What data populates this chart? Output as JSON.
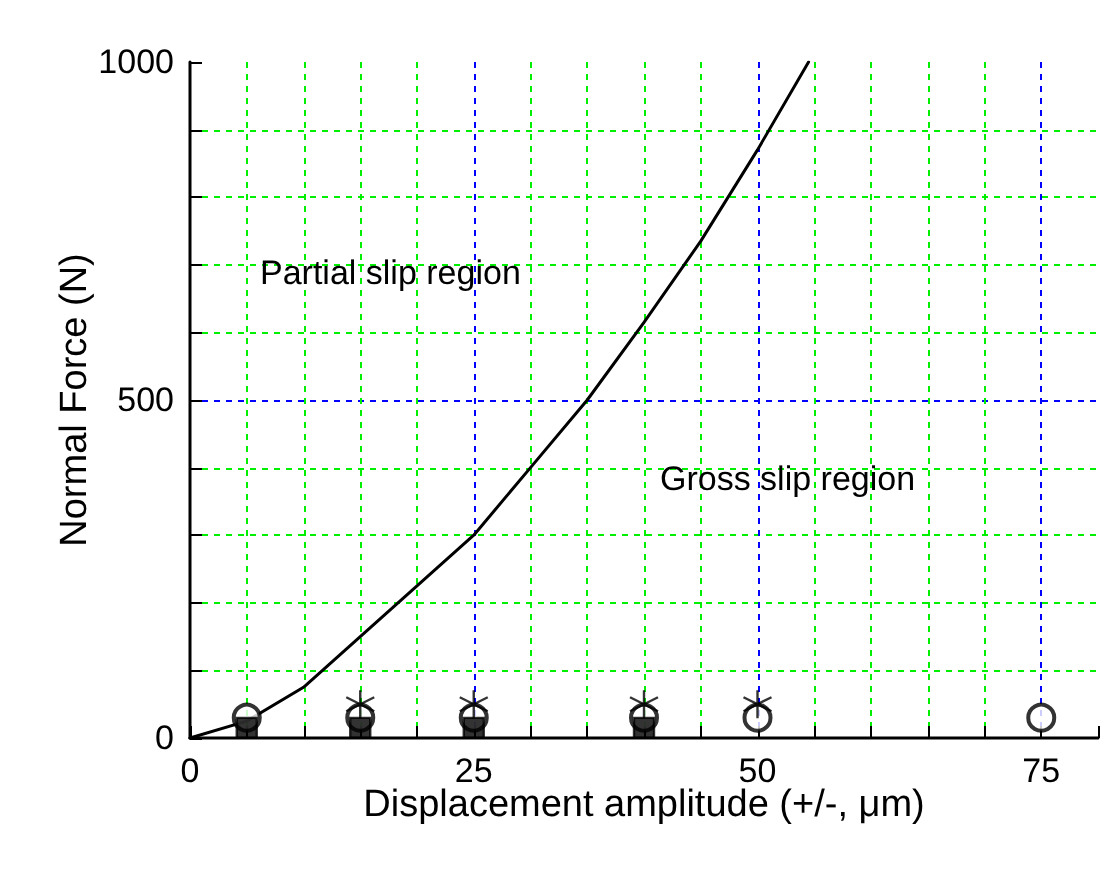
{
  "chart_data": {
    "type": "line",
    "xlabel": "Displacement amplitude (+/-, μm)",
    "ylabel": "Normal Force (N)",
    "xlim": [
      0,
      80
    ],
    "ylim": [
      0,
      1000
    ],
    "xticks": [
      0,
      {
        "value": 5,
        "label": null
      },
      {
        "value": 10,
        "label": null
      },
      {
        "value": 15,
        "label": null
      },
      {
        "value": 20,
        "label": null
      },
      25,
      {
        "value": 30,
        "label": null
      },
      {
        "value": 35,
        "label": null
      },
      {
        "value": 40,
        "label": null
      },
      {
        "value": 45,
        "label": null
      },
      50,
      {
        "value": 55,
        "label": null
      },
      {
        "value": 60,
        "label": null
      },
      {
        "value": 65,
        "label": null
      },
      {
        "value": 70,
        "label": null
      },
      75,
      {
        "value": 80,
        "label": null
      }
    ],
    "yticks": [
      0,
      {
        "value": 100,
        "label": null
      },
      {
        "value": 200,
        "label": null
      },
      {
        "value": 300,
        "label": null
      },
      {
        "value": 400,
        "label": null
      },
      500,
      {
        "value": 600,
        "label": null
      },
      {
        "value": 700,
        "label": null
      },
      {
        "value": 800,
        "label": null
      },
      {
        "value": 900,
        "label": null
      },
      1000
    ],
    "grid": true,
    "series": [
      {
        "type": "line",
        "color": "#000000",
        "marker": "none",
        "x": [
          0,
          5,
          10,
          15,
          20,
          25,
          30,
          35,
          40,
          45,
          50,
          54.5
        ],
        "values": [
          0,
          25,
          75,
          150,
          225,
          300,
          400,
          500,
          615,
          735,
          870,
          1000
        ]
      },
      {
        "type": "scatter",
        "color": "#000000",
        "marker": "square",
        "x": [
          5,
          15,
          25,
          40
        ],
        "values": [
          15,
          15,
          15,
          15
        ]
      },
      {
        "type": "scatter",
        "color": "#000000",
        "marker": "circle",
        "x": [
          5,
          15,
          25,
          40,
          50,
          75
        ],
        "values": [
          30,
          30,
          30,
          30,
          30,
          30
        ]
      },
      {
        "type": "scatter",
        "color": "#000000",
        "marker": "cross",
        "x": [
          15,
          25,
          40,
          50
        ],
        "values": [
          50,
          50,
          50,
          50
        ]
      }
    ],
    "annotations": [
      "Partial slip region",
      "Gross slip region"
    ]
  }
}
